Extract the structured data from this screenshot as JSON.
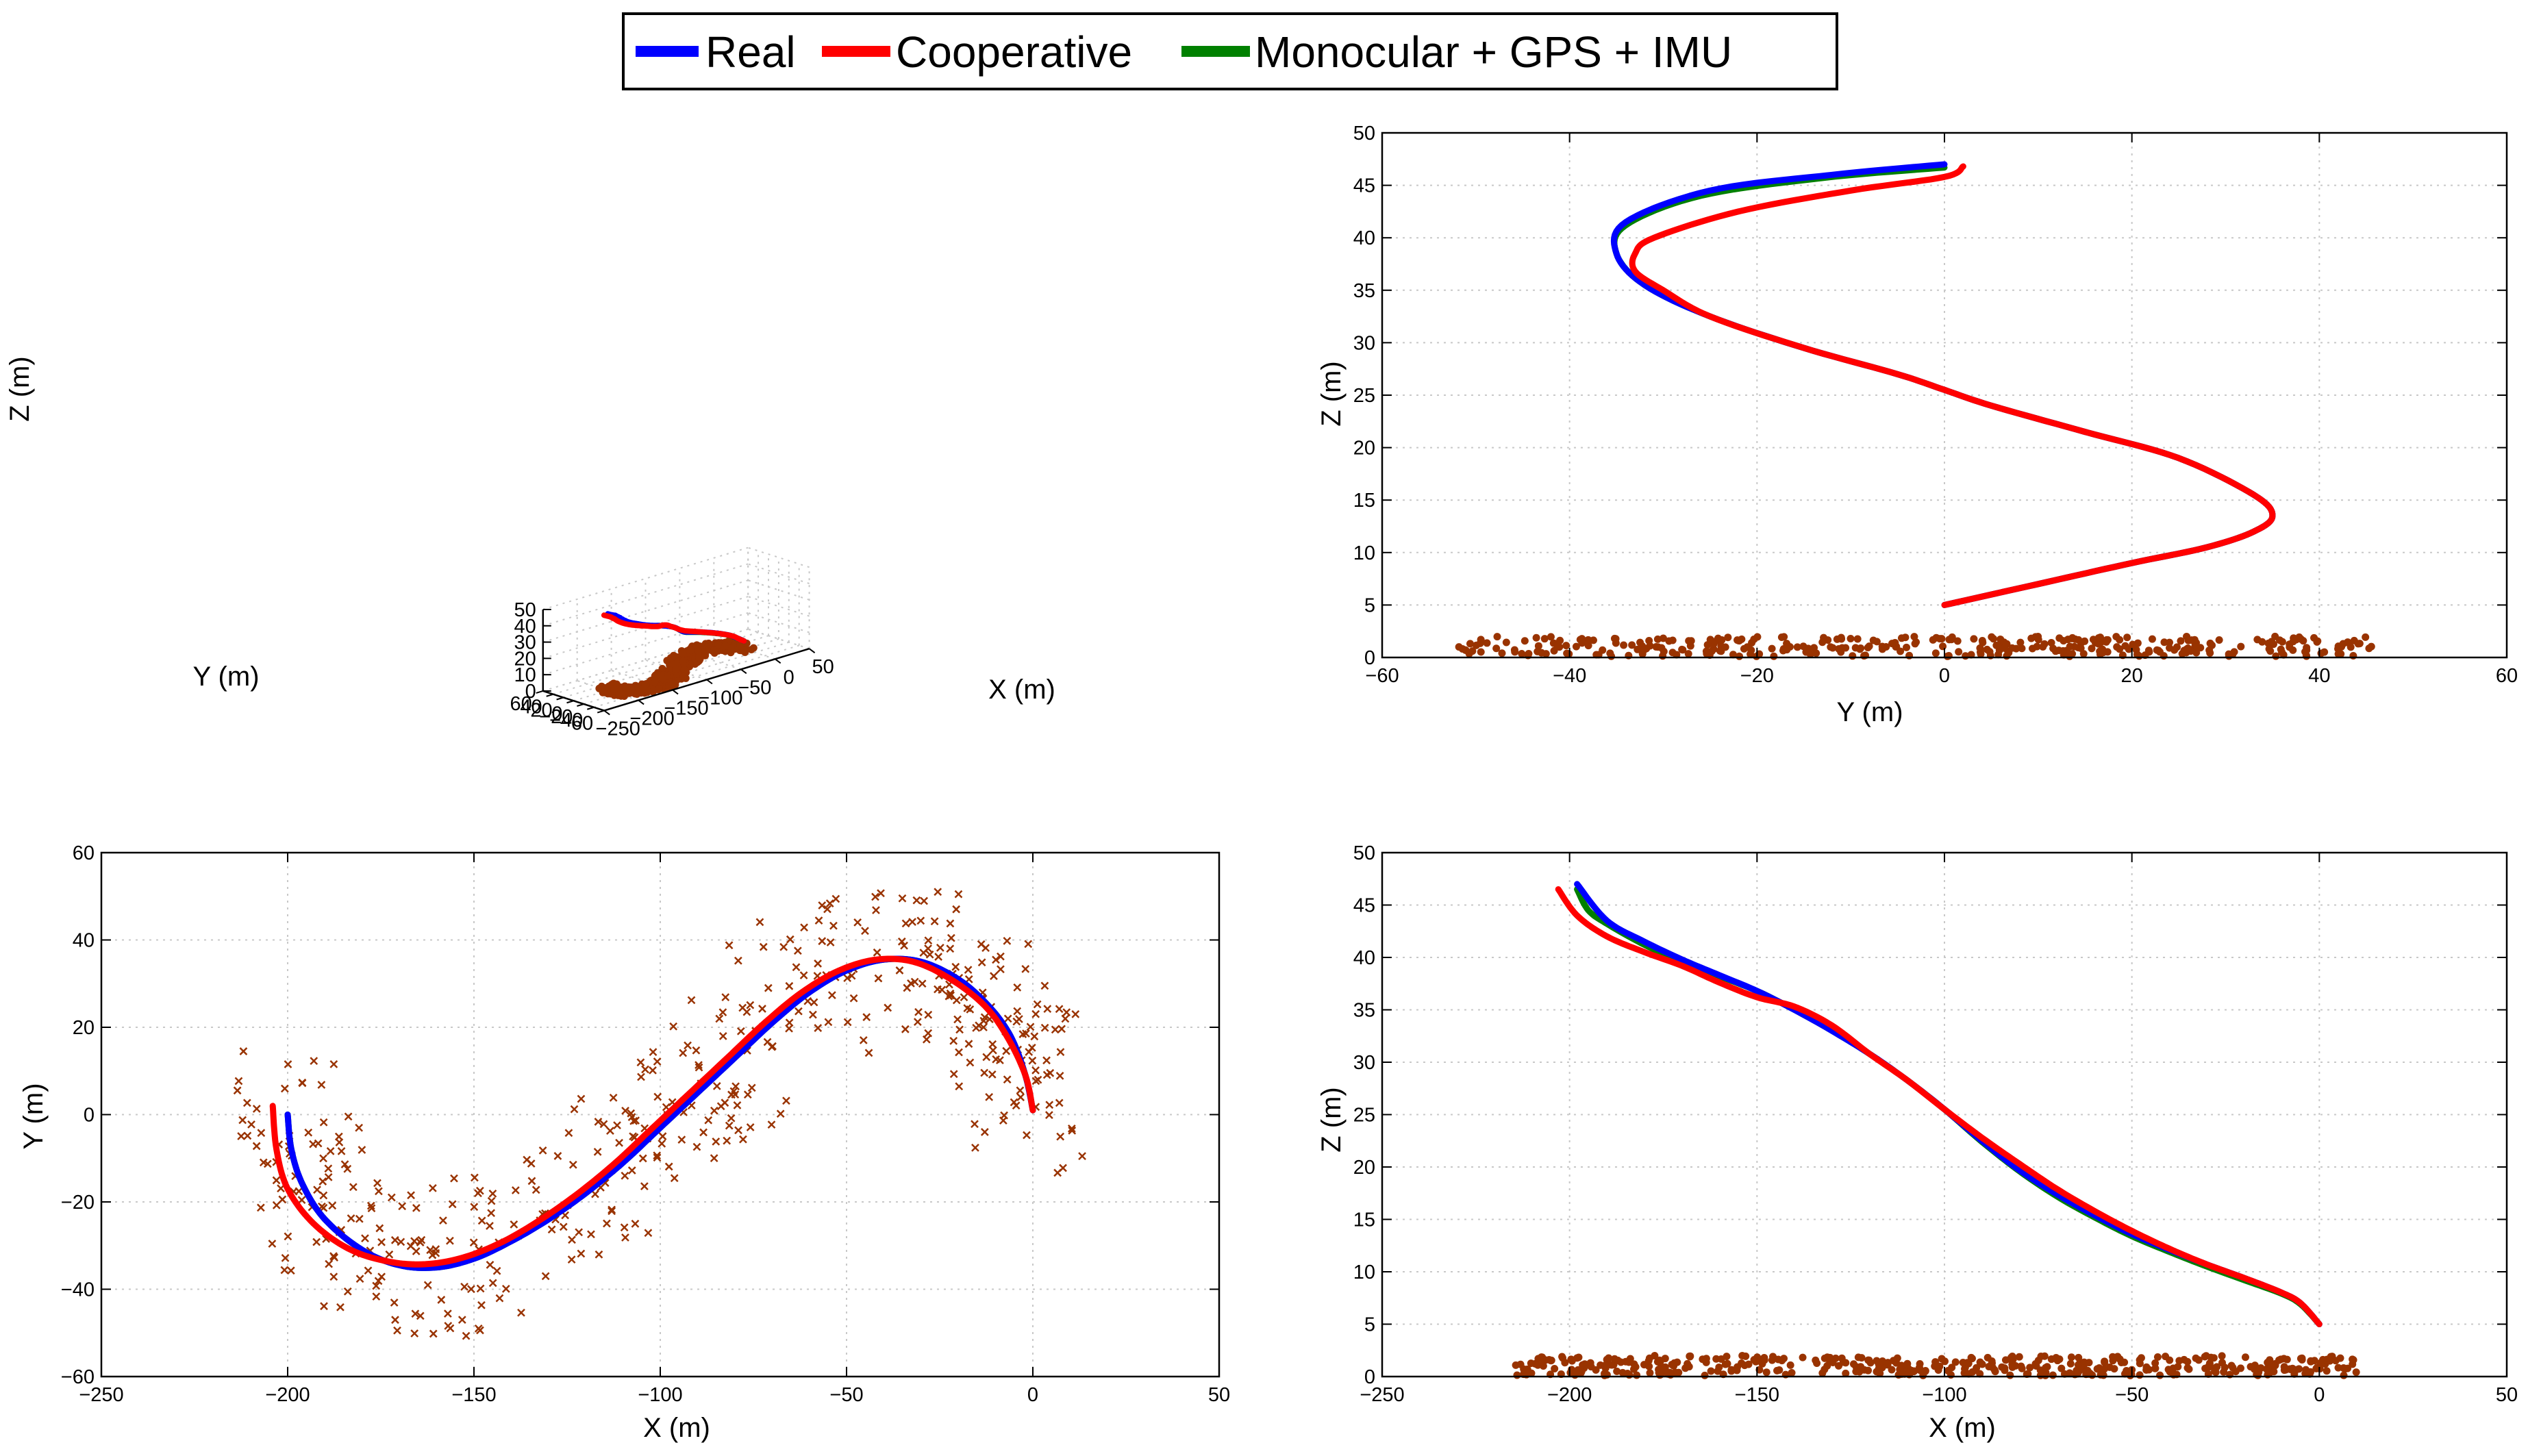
{
  "legend": {
    "entries": [
      {
        "label": "Real",
        "color": "#0000ff"
      },
      {
        "label": "Cooperative",
        "color": "#ff0000"
      },
      {
        "label": "Monocular + GPS + IMU",
        "color": "#008000"
      }
    ]
  },
  "colors": {
    "landmarks": "#993300",
    "grid": "#c8c8c8"
  },
  "chart_data": [
    {
      "id": "3d",
      "type": "line3d",
      "xlabel": "X (m)",
      "ylabel": "Y (m)",
      "zlabel": "Z (m)",
      "xlim": [
        -250,
        50
      ],
      "ylim": [
        -60,
        60
      ],
      "zlim": [
        0,
        50
      ],
      "xticks": [
        -250,
        -200,
        -150,
        -100,
        -50,
        0,
        50
      ],
      "yticks": [
        -60,
        -40,
        -20,
        0,
        20,
        40,
        60
      ],
      "zticks": [
        0,
        10,
        20,
        30,
        40,
        50
      ],
      "xtick_labels": [
        "−250",
        "−200",
        "−150",
        "−100",
        "−50",
        "0",
        "50"
      ],
      "ytick_labels": [
        "−60",
        "−40",
        "−20",
        "0",
        "20",
        "40",
        "60"
      ],
      "ztick_labels": [
        "0",
        "10",
        "20",
        "30",
        "40",
        "50"
      ],
      "series": [
        "Real",
        "Cooperative",
        "Monocular + GPS + IMU"
      ],
      "landmarks": "brown dots on the ground plane (z = 0)"
    },
    {
      "id": "yz",
      "type": "line",
      "xlabel": "Y (m)",
      "ylabel": "Z (m)",
      "xlim": [
        -60,
        60
      ],
      "ylim": [
        0,
        50
      ],
      "xticks": [
        -60,
        -40,
        -20,
        0,
        20,
        40,
        60
      ],
      "yticks": [
        0,
        5,
        10,
        15,
        20,
        25,
        30,
        35,
        40,
        45,
        50
      ],
      "xtick_labels": [
        "−60",
        "−40",
        "−20",
        "0",
        "20",
        "40",
        "60"
      ],
      "ytick_labels": [
        "0",
        "5",
        "10",
        "15",
        "20",
        "25",
        "30",
        "35",
        "40",
        "45",
        "50"
      ],
      "series": [
        {
          "name": "Real",
          "x": [
            0,
            10,
            20,
            28,
            33,
            35,
            33,
            25,
            15,
            5,
            0,
            -5,
            -15,
            -25,
            -32,
            -35,
            -34,
            -25,
            -12,
            0
          ],
          "y": [
            5,
            7,
            9,
            10.5,
            12,
            13.5,
            15.5,
            19,
            21.5,
            24,
            25.5,
            27,
            29.5,
            32.5,
            35.5,
            38.5,
            41.5,
            44.5,
            46,
            47
          ]
        },
        {
          "name": "Cooperative",
          "x": [
            0,
            10,
            20,
            28,
            33,
            35,
            33,
            25,
            15,
            5,
            0,
            -5,
            -15,
            -25,
            -30,
            -33,
            -33,
            -31,
            -22,
            -10,
            0,
            2
          ],
          "y": [
            5,
            7,
            9,
            10.5,
            12,
            13.5,
            15.5,
            19,
            21.5,
            24,
            25.5,
            27,
            29.5,
            32.5,
            35,
            36.8,
            38.5,
            40,
            42.5,
            44.5,
            45.8,
            46.8
          ]
        },
        {
          "name": "Monocular + GPS + IMU",
          "x": [
            0,
            10,
            20,
            28,
            33,
            35,
            33,
            25,
            15,
            5,
            0,
            -5,
            -15,
            -25,
            -32,
            -35,
            -34,
            -26,
            -13,
            0
          ],
          "y": [
            5,
            7,
            9,
            10.5,
            12,
            13.5,
            15.5,
            19,
            21.5,
            24,
            25.5,
            27,
            29.5,
            32.5,
            35.5,
            38.5,
            41.2,
            44,
            45.7,
            46.7
          ]
        }
      ],
      "landmarks": "brown dots along Z ≈ 0–2 spanning Y ≈ −52 to 46"
    },
    {
      "id": "xy",
      "type": "line",
      "xlabel": "X (m)",
      "ylabel": "Y (m)",
      "xlim": [
        -250,
        50
      ],
      "ylim": [
        -60,
        60
      ],
      "xticks": [
        -250,
        -200,
        -150,
        -100,
        -50,
        0,
        50
      ],
      "yticks": [
        -60,
        -40,
        -20,
        0,
        20,
        40,
        60
      ],
      "xtick_labels": [
        "−250",
        "−200",
        "−150",
        "−100",
        "−50",
        "0",
        "50"
      ],
      "ytick_labels": [
        "−60",
        "−40",
        "−20",
        "0",
        "20",
        "40",
        "60"
      ],
      "series": [
        {
          "name": "Real",
          "x": [
            -200,
            -199,
            -196,
            -190,
            -180,
            -170,
            -160,
            -150,
            -140,
            -130,
            -120,
            -110,
            -100,
            -90,
            -80,
            -70,
            -60,
            -50,
            -40,
            -30,
            -20,
            -12,
            -6,
            -2,
            0
          ],
          "y": [
            0,
            -8,
            -16,
            -24,
            -31,
            -34.5,
            -35,
            -33,
            -29,
            -24,
            -18,
            -11,
            -3,
            5,
            13,
            21,
            28,
            33,
            35.5,
            35,
            31,
            25,
            18,
            9,
            1
          ]
        },
        {
          "name": "Cooperative",
          "x": [
            -204,
            -203,
            -200,
            -193,
            -183,
            -172,
            -162,
            -152,
            -142,
            -132,
            -122,
            -112,
            -102,
            -92,
            -82,
            -72,
            -62,
            -52,
            -42,
            -32,
            -22,
            -13,
            -7,
            -2,
            0
          ],
          "y": [
            2,
            -8,
            -17,
            -25,
            -31,
            -33.8,
            -34.2,
            -32.5,
            -29,
            -24,
            -18,
            -11,
            -3,
            5,
            13,
            21,
            28,
            33,
            35.5,
            35,
            31,
            25,
            18,
            9,
            1
          ]
        },
        {
          "name": "Monocular + GPS + IMU",
          "x": [
            -200,
            -199,
            -196,
            -190,
            -180,
            -170,
            -160,
            -150,
            -140,
            -130,
            -120,
            -110,
            -100,
            -90,
            -80,
            -70,
            -60,
            -50,
            -40,
            -30,
            -20,
            -12,
            -6,
            -2,
            0
          ],
          "y": [
            0,
            -8,
            -16,
            -24,
            -31,
            -34.5,
            -35,
            -33,
            -29,
            -24,
            -18,
            -11,
            -3,
            5,
            13,
            21,
            28,
            33,
            35.5,
            35,
            31,
            25,
            18,
            9,
            1
          ]
        }
      ],
      "landmarks": "brown x markers forming a band around the trajectory"
    },
    {
      "id": "xz",
      "type": "line",
      "xlabel": "X (m)",
      "ylabel": "Z (m)",
      "xlim": [
        -250,
        50
      ],
      "ylim": [
        0,
        50
      ],
      "xticks": [
        -250,
        -200,
        -150,
        -100,
        -50,
        0,
        50
      ],
      "yticks": [
        0,
        5,
        10,
        15,
        20,
        25,
        30,
        35,
        40,
        45,
        50
      ],
      "xtick_labels": [
        "−250",
        "−200",
        "−150",
        "−100",
        "−50",
        "0",
        "50"
      ],
      "ytick_labels": [
        "0",
        "5",
        "10",
        "15",
        "20",
        "25",
        "30",
        "35",
        "40",
        "45",
        "50"
      ],
      "series": [
        {
          "name": "Real",
          "x": [
            -198,
            -190,
            -180,
            -170,
            -160,
            -150,
            -140,
            -130,
            -120,
            -110,
            -100,
            -90,
            -80,
            -70,
            -60,
            -50,
            -40,
            -30,
            -20,
            -10,
            -5,
            0
          ],
          "y": [
            47,
            43.5,
            41.5,
            39.8,
            38.3,
            36.8,
            35,
            33,
            30.8,
            28.3,
            25.5,
            22.5,
            19.7,
            17.4,
            15.4,
            13.6,
            12.1,
            10.7,
            9.4,
            8,
            7,
            5
          ]
        },
        {
          "name": "Cooperative",
          "x": [
            -203,
            -198,
            -190,
            -180,
            -170,
            -160,
            -150,
            -140,
            -130,
            -120,
            -110,
            -100,
            -90,
            -80,
            -70,
            -60,
            -50,
            -40,
            -30,
            -20,
            -10,
            -5,
            0
          ],
          "y": [
            46.5,
            44,
            42,
            40.5,
            39.2,
            37.6,
            36.2,
            35.3,
            33.5,
            30.8,
            28.3,
            25.5,
            22.8,
            20.3,
            17.9,
            15.8,
            13.9,
            12.2,
            10.7,
            9.4,
            8,
            7,
            5
          ]
        },
        {
          "name": "Monocular + GPS + IMU",
          "x": [
            -198,
            -195,
            -190,
            -180,
            -170,
            -160,
            -150,
            -140,
            -130,
            -120,
            -110,
            -100,
            -90,
            -80,
            -70,
            -60,
            -50,
            -40,
            -30,
            -20,
            -10,
            -5,
            0
          ],
          "y": [
            46.5,
            44.5,
            43.2,
            41.2,
            39.6,
            38.2,
            36.8,
            35,
            33,
            30.8,
            28.3,
            25.5,
            22.4,
            19.6,
            17.2,
            15.2,
            13.4,
            11.9,
            10.5,
            9.2,
            7.9,
            6.9,
            5
          ]
        }
      ],
      "landmarks": "brown dots along Z ≈ 0–2 spanning X ≈ −215 to 10"
    }
  ]
}
